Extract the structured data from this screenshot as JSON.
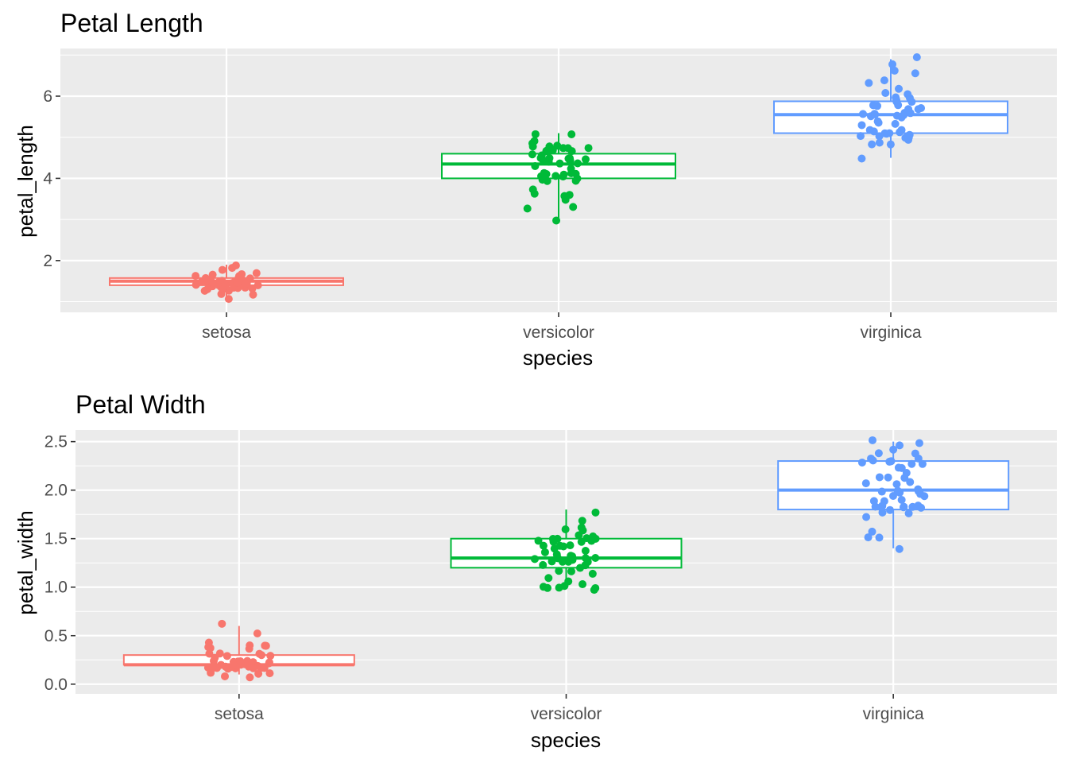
{
  "chart_data": [
    {
      "type": "box",
      "title": "Petal Length",
      "xlabel": "species",
      "ylabel": "petal_length",
      "categories": [
        "setosa",
        "versicolor",
        "virginica"
      ],
      "ylim": [
        0.74,
        7.16
      ],
      "yticks": [
        2,
        4,
        6
      ],
      "ytick_labels": [
        "2",
        "4",
        "6"
      ],
      "grid": true,
      "legend": "none",
      "colors": [
        "#F8766D",
        "#00BA38",
        "#619CFF"
      ],
      "boxes": [
        {
          "name": "setosa",
          "min": 1.0,
          "q1": 1.4,
          "median": 1.5,
          "q3": 1.575,
          "max": 1.9
        },
        {
          "name": "versicolor",
          "min": 3.0,
          "q1": 4.0,
          "median": 4.35,
          "q3": 4.6,
          "max": 5.1
        },
        {
          "name": "virginica",
          "min": 4.5,
          "q1": 5.1,
          "median": 5.55,
          "q3": 5.875,
          "max": 6.9
        }
      ],
      "points": [
        [
          1.4,
          1.4,
          1.3,
          1.5,
          1.4,
          1.7,
          1.4,
          1.5,
          1.4,
          1.5,
          1.5,
          1.6,
          1.4,
          1.1,
          1.2,
          1.5,
          1.3,
          1.4,
          1.7,
          1.5,
          1.7,
          1.5,
          1.0,
          1.7,
          1.9,
          1.6,
          1.6,
          1.5,
          1.4,
          1.6,
          1.6,
          1.5,
          1.5,
          1.4,
          1.5,
          1.2,
          1.3,
          1.4,
          1.3,
          1.5,
          1.3,
          1.3,
          1.3,
          1.6,
          1.9,
          1.4,
          1.6,
          1.4,
          1.5,
          1.4
        ],
        [
          4.7,
          4.5,
          4.9,
          4.0,
          4.6,
          4.5,
          4.7,
          3.3,
          4.6,
          3.9,
          3.5,
          4.2,
          4.0,
          4.7,
          3.6,
          4.4,
          4.5,
          4.1,
          4.5,
          3.9,
          4.8,
          4.0,
          4.9,
          4.7,
          4.3,
          4.4,
          4.8,
          5.0,
          4.5,
          3.5,
          3.8,
          3.7,
          3.9,
          5.1,
          4.5,
          4.5,
          4.7,
          4.4,
          4.1,
          4.0,
          4.4,
          4.6,
          4.0,
          3.3,
          4.2,
          4.2,
          4.2,
          4.3,
          3.0,
          4.1
        ],
        [
          6.0,
          5.1,
          5.9,
          5.6,
          5.8,
          6.6,
          4.5,
          6.3,
          5.8,
          6.1,
          5.1,
          5.3,
          5.5,
          5.0,
          5.1,
          5.3,
          5.5,
          6.7,
          6.9,
          5.0,
          5.7,
          4.9,
          6.7,
          4.9,
          5.7,
          6.0,
          4.8,
          4.9,
          5.6,
          5.8,
          6.1,
          6.4,
          5.6,
          5.1,
          5.6,
          6.1,
          5.6,
          5.5,
          4.8,
          5.4,
          5.6,
          5.1,
          5.1,
          5.9,
          5.7,
          5.2,
          5.0,
          5.2,
          5.4,
          5.1
        ]
      ]
    },
    {
      "type": "box",
      "title": "Petal Width",
      "xlabel": "species",
      "ylabel": "petal_width",
      "categories": [
        "setosa",
        "versicolor",
        "virginica"
      ],
      "ylim": [
        -0.1,
        2.62
      ],
      "yticks": [
        0.0,
        0.5,
        1.0,
        1.5,
        2.0,
        2.5
      ],
      "ytick_labels": [
        "0.0",
        "0.5",
        "1.0",
        "1.5",
        "2.0",
        "2.5"
      ],
      "grid": true,
      "legend": "none",
      "colors": [
        "#F8766D",
        "#00BA38",
        "#619CFF"
      ],
      "boxes": [
        {
          "name": "setosa",
          "min": 0.1,
          "q1": 0.2,
          "median": 0.2,
          "q3": 0.3,
          "max": 0.6
        },
        {
          "name": "versicolor",
          "min": 1.0,
          "q1": 1.2,
          "median": 1.3,
          "q3": 1.5,
          "max": 1.8
        },
        {
          "name": "virginica",
          "min": 1.4,
          "q1": 1.8,
          "median": 2.0,
          "q3": 2.3,
          "max": 2.5
        }
      ],
      "points": [
        [
          0.2,
          0.2,
          0.2,
          0.2,
          0.2,
          0.4,
          0.3,
          0.2,
          0.2,
          0.1,
          0.2,
          0.2,
          0.1,
          0.1,
          0.2,
          0.4,
          0.4,
          0.3,
          0.3,
          0.3,
          0.2,
          0.4,
          0.2,
          0.5,
          0.2,
          0.2,
          0.4,
          0.2,
          0.2,
          0.2,
          0.2,
          0.4,
          0.1,
          0.2,
          0.2,
          0.2,
          0.2,
          0.1,
          0.2,
          0.2,
          0.3,
          0.3,
          0.2,
          0.6,
          0.4,
          0.3,
          0.2,
          0.2,
          0.2,
          0.2
        ],
        [
          1.4,
          1.5,
          1.5,
          1.3,
          1.5,
          1.3,
          1.6,
          1.0,
          1.3,
          1.4,
          1.0,
          1.5,
          1.0,
          1.4,
          1.3,
          1.4,
          1.5,
          1.0,
          1.5,
          1.1,
          1.8,
          1.3,
          1.5,
          1.2,
          1.3,
          1.4,
          1.4,
          1.7,
          1.5,
          1.0,
          1.1,
          1.0,
          1.2,
          1.6,
          1.5,
          1.6,
          1.5,
          1.3,
          1.3,
          1.3,
          1.2,
          1.4,
          1.2,
          1.0,
          1.3,
          1.2,
          1.3,
          1.3,
          1.1,
          1.3
        ],
        [
          2.5,
          1.9,
          2.1,
          1.8,
          2.2,
          2.1,
          1.7,
          1.8,
          1.8,
          2.5,
          2.0,
          1.9,
          2.1,
          2.0,
          2.4,
          2.3,
          1.8,
          2.2,
          2.3,
          1.5,
          2.3,
          2.0,
          2.0,
          1.8,
          2.1,
          1.8,
          1.8,
          1.8,
          2.1,
          1.6,
          1.9,
          2.0,
          2.2,
          1.5,
          1.4,
          2.3,
          2.4,
          1.8,
          1.8,
          2.1,
          2.4,
          2.3,
          1.9,
          2.3,
          2.5,
          2.3,
          1.9,
          2.0,
          2.3,
          1.8
        ]
      ]
    }
  ]
}
